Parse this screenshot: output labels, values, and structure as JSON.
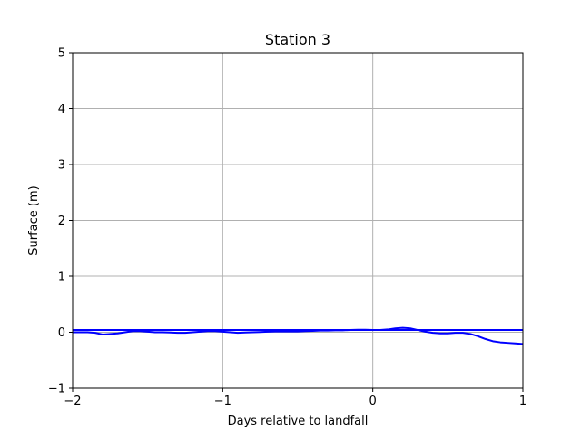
{
  "chart_data": {
    "type": "line",
    "title": "Station 3",
    "xlabel": "Days relative to landfall",
    "ylabel": "Surface (m)",
    "xlim": [
      -2,
      1
    ],
    "ylim": [
      -1,
      5
    ],
    "xticks": [
      -2,
      -1,
      0,
      1
    ],
    "xtick_labels": [
      "−2",
      "−1",
      "0",
      "1"
    ],
    "yticks": [
      -1,
      0,
      1,
      2,
      3,
      4,
      5
    ],
    "ytick_labels": [
      "−1",
      "0",
      "1",
      "2",
      "3",
      "4",
      "5"
    ],
    "grid": true,
    "colors": {
      "series": "#0000ff",
      "grid": "#b0b0b0",
      "axes": "#000000"
    },
    "series": [
      {
        "x": [
          -2.0,
          1.0
        ],
        "y": [
          0.04,
          0.04
        ]
      },
      {
        "x": [
          -2.0,
          -1.9,
          -1.85,
          -1.8,
          -1.75,
          -1.7,
          -1.65,
          -1.6,
          -1.55,
          -1.5,
          -1.45,
          -1.4,
          -1.35,
          -1.3,
          -1.25,
          -1.2,
          -1.15,
          -1.1,
          -1.05,
          -1.0,
          -0.95,
          -0.9,
          -0.85,
          -0.8,
          -0.75,
          -0.7,
          -0.65,
          -0.6,
          -0.55,
          -0.5,
          -0.45,
          -0.4,
          -0.35,
          -0.3,
          -0.25,
          -0.2,
          -0.15,
          -0.1,
          -0.05,
          0.0,
          0.05,
          0.1,
          0.15,
          0.2,
          0.25,
          0.3,
          0.35,
          0.4,
          0.45,
          0.5,
          0.55,
          0.6,
          0.65,
          0.7,
          0.75,
          0.8,
          0.85,
          0.9,
          0.95,
          1.0
        ],
        "y": [
          0.0,
          0.0,
          -0.01,
          -0.04,
          -0.03,
          -0.02,
          0.0,
          0.02,
          0.02,
          0.01,
          0.0,
          0.0,
          -0.005,
          -0.01,
          -0.01,
          0.0,
          0.01,
          0.02,
          0.02,
          0.01,
          0.0,
          -0.01,
          -0.005,
          0.0,
          0.005,
          0.01,
          0.015,
          0.015,
          0.015,
          0.015,
          0.02,
          0.025,
          0.03,
          0.03,
          0.035,
          0.035,
          0.04,
          0.045,
          0.045,
          0.04,
          0.04,
          0.05,
          0.07,
          0.08,
          0.07,
          0.04,
          0.01,
          -0.01,
          -0.02,
          -0.02,
          -0.01,
          -0.01,
          -0.03,
          -0.07,
          -0.12,
          -0.16,
          -0.18,
          -0.19,
          -0.2,
          -0.21
        ]
      }
    ]
  }
}
